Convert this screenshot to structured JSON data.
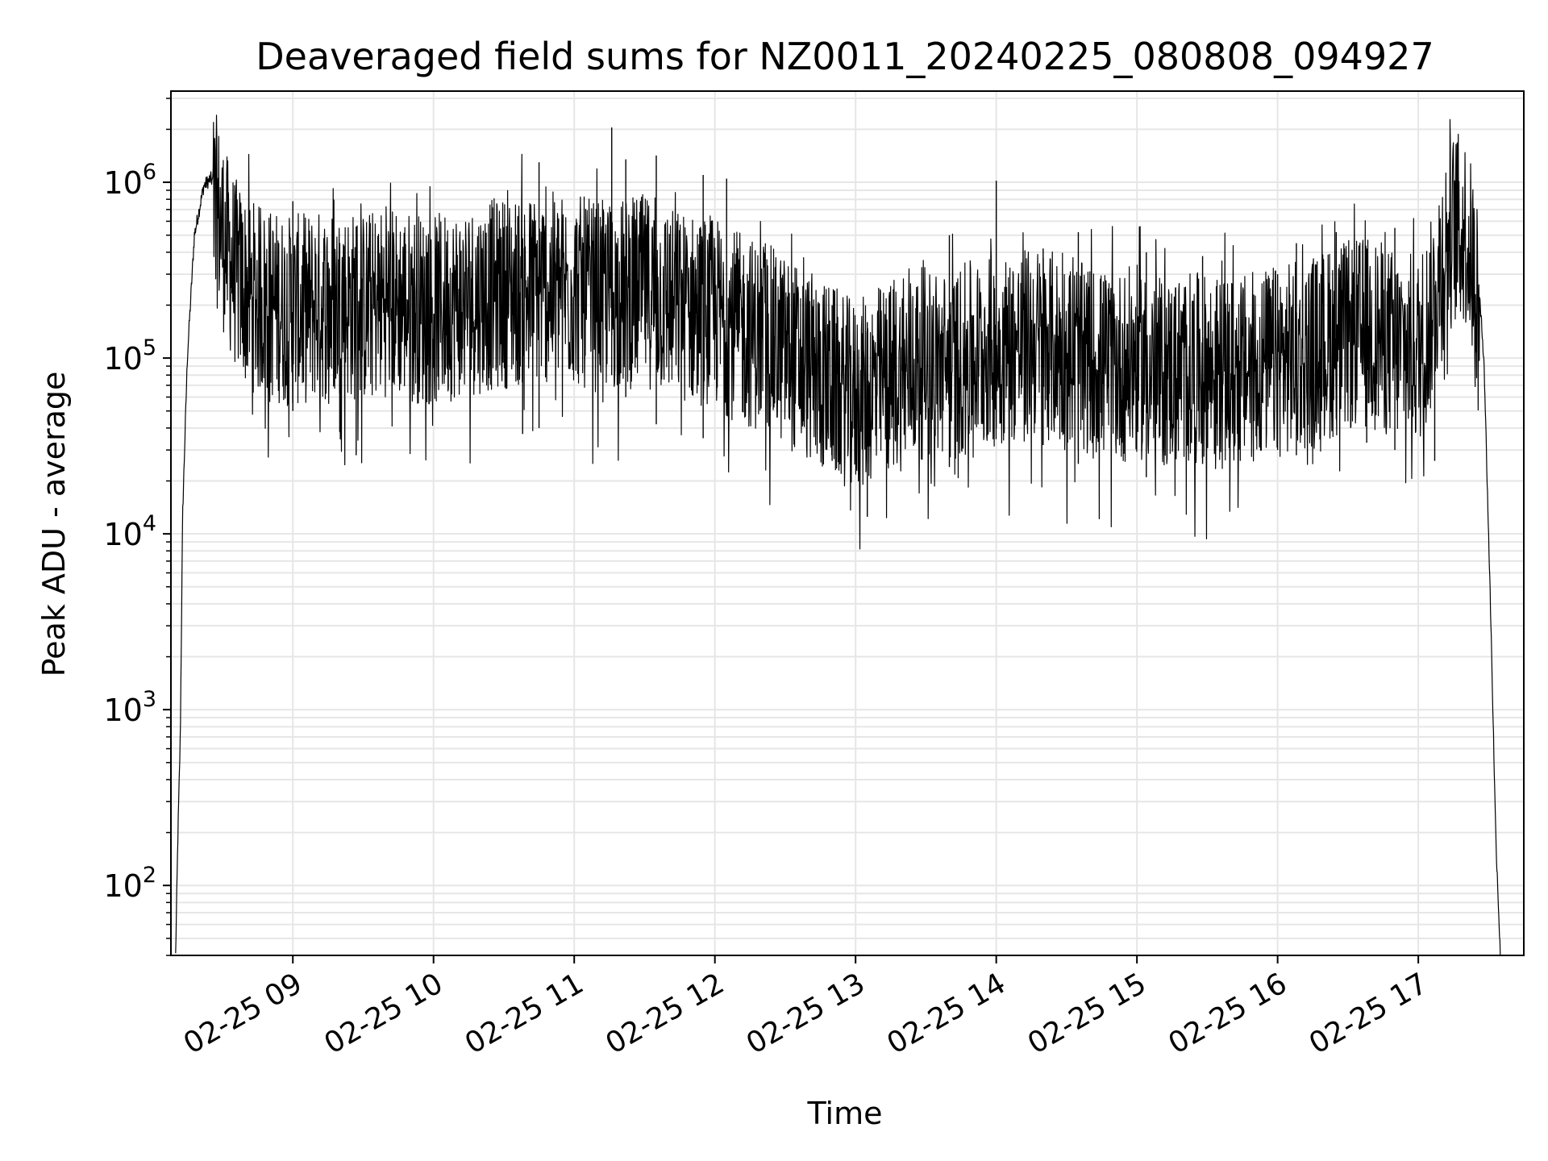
{
  "chart_data": {
    "type": "line",
    "title": "Deaveraged field sums for NZ0011_20240225_080808_094927",
    "xlabel": "Time",
    "ylabel": "Peak ADU - average",
    "yscale": "log",
    "grid": true,
    "line_color": "#000000",
    "grid_color": "#e6e6e6",
    "xlim": [
      "2024-02-25 08:08",
      "2024-02-25 17:45"
    ],
    "ylim": [
      40,
      3300000
    ],
    "x_ticks": [
      {
        "value": "2024-02-25 09:00",
        "label": "02-25 09"
      },
      {
        "value": "2024-02-25 10:00",
        "label": "02-25 10"
      },
      {
        "value": "2024-02-25 11:00",
        "label": "02-25 11"
      },
      {
        "value": "2024-02-25 12:00",
        "label": "02-25 12"
      },
      {
        "value": "2024-02-25 13:00",
        "label": "02-25 13"
      },
      {
        "value": "2024-02-25 14:00",
        "label": "02-25 14"
      },
      {
        "value": "2024-02-25 15:00",
        "label": "02-25 15"
      },
      {
        "value": "2024-02-25 16:00",
        "label": "02-25 16"
      },
      {
        "value": "2024-02-25 17:00",
        "label": "02-25 17"
      }
    ],
    "y_ticks": [
      {
        "value": 100,
        "base": "10",
        "exp": "2"
      },
      {
        "value": 1000,
        "base": "10",
        "exp": "3"
      },
      {
        "value": 10000,
        "base": "10",
        "exp": "4"
      },
      {
        "value": 100000,
        "base": "10",
        "exp": "5"
      },
      {
        "value": 1000000,
        "base": "10",
        "exp": "6"
      }
    ],
    "series": [
      {
        "x": [
          "2024-02-25 08:10",
          "2024-02-25 08:11",
          "2024-02-25 08:12",
          "2024-02-25 08:13",
          "2024-02-25 08:15",
          "2024-02-25 08:18",
          "2024-02-25 08:22",
          "2024-02-25 08:25",
          "2024-02-25 08:28",
          "2024-02-25 08:32",
          "2024-02-25 08:36",
          "2024-02-25 08:40",
          "2024-02-25 08:45",
          "2024-02-25 08:50",
          "2024-02-25 08:55",
          "2024-02-25 09:00",
          "2024-02-25 09:10",
          "2024-02-25 09:20",
          "2024-02-25 09:30",
          "2024-02-25 09:40",
          "2024-02-25 09:50",
          "2024-02-25 10:00",
          "2024-02-25 10:10",
          "2024-02-25 10:20",
          "2024-02-25 10:30",
          "2024-02-25 10:40",
          "2024-02-25 10:50",
          "2024-02-25 11:00",
          "2024-02-25 11:10",
          "2024-02-25 11:20",
          "2024-02-25 11:30",
          "2024-02-25 11:40",
          "2024-02-25 11:50",
          "2024-02-25 12:00",
          "2024-02-25 12:10",
          "2024-02-25 12:20",
          "2024-02-25 12:30",
          "2024-02-25 12:40",
          "2024-02-25 12:50",
          "2024-02-25 13:00",
          "2024-02-25 13:10",
          "2024-02-25 13:20",
          "2024-02-25 13:30",
          "2024-02-25 13:40",
          "2024-02-25 13:50",
          "2024-02-25 14:00",
          "2024-02-25 14:10",
          "2024-02-25 14:20",
          "2024-02-25 14:30",
          "2024-02-25 14:40",
          "2024-02-25 14:50",
          "2024-02-25 15:00",
          "2024-02-25 15:10",
          "2024-02-25 15:20",
          "2024-02-25 15:30",
          "2024-02-25 15:40",
          "2024-02-25 15:50",
          "2024-02-25 16:00",
          "2024-02-25 16:10",
          "2024-02-25 16:20",
          "2024-02-25 16:30",
          "2024-02-25 16:40",
          "2024-02-25 16:50",
          "2024-02-25 17:00",
          "2024-02-25 17:05",
          "2024-02-25 17:10",
          "2024-02-25 17:15",
          "2024-02-25 17:20",
          "2024-02-25 17:25",
          "2024-02-25 17:28",
          "2024-02-25 17:31",
          "2024-02-25 17:33",
          "2024-02-25 17:35"
        ],
        "y": [
          40,
          200,
          700,
          13000,
          100000,
          500000,
          950000,
          1050000,
          900000,
          550000,
          400000,
          330000,
          290000,
          280000,
          260000,
          250000,
          270000,
          280000,
          260000,
          290000,
          270000,
          250000,
          280000,
          300000,
          320000,
          330000,
          340000,
          330000,
          300000,
          310000,
          330000,
          280000,
          260000,
          250000,
          200000,
          180000,
          150000,
          120000,
          100000,
          80000,
          100000,
          110000,
          130000,
          120000,
          140000,
          150000,
          160000,
          170000,
          140000,
          130000,
          120000,
          130000,
          110000,
          120000,
          115000,
          110000,
          120000,
          130000,
          140000,
          160000,
          180000,
          190000,
          160000,
          150000,
          220000,
          500000,
          750000,
          720000,
          350000,
          100000,
          3000,
          200,
          40
        ],
        "spikes": [
          {
            "x": "2024-02-25 09:00",
            "high": 780000,
            "low": 50000
          },
          {
            "x": "2024-02-25 09:20",
            "high": 450000,
            "low": 38000
          },
          {
            "x": "2024-02-25 09:27",
            "high": 560000,
            "low": 28000
          },
          {
            "x": "2024-02-25 10:38",
            "high": 480000,
            "low": 37000
          },
          {
            "x": "2024-02-25 10:45",
            "high": 1300000,
            "low": 40000
          },
          {
            "x": "2024-02-25 11:16",
            "high": 2050000,
            "low": 80000
          },
          {
            "x": "2024-02-25 11:22",
            "high": 1350000,
            "low": 60000
          },
          {
            "x": "2024-02-25 11:35",
            "high": 1420000,
            "low": 42000
          },
          {
            "x": "2024-02-25 11:55",
            "high": 1100000,
            "low": 35000
          },
          {
            "x": "2024-02-25 12:05",
            "high": 1050000,
            "low": 55000
          },
          {
            "x": "2024-02-25 12:50",
            "high": 200000,
            "low": 26000
          },
          {
            "x": "2024-02-25 13:05",
            "high": 160000,
            "low": 12500
          },
          {
            "x": "2024-02-25 13:40",
            "high": 500000,
            "low": 24000
          },
          {
            "x": "2024-02-25 14:00",
            "high": 1020000,
            "low": 40000
          },
          {
            "x": "2024-02-25 14:20",
            "high": 420000,
            "low": 32000
          },
          {
            "x": "2024-02-25 14:35",
            "high": 520000,
            "low": 25000
          },
          {
            "x": "2024-02-25 15:04",
            "high": 400000,
            "low": 21000
          },
          {
            "x": "2024-02-25 15:28",
            "high": 380000,
            "low": 25000
          },
          {
            "x": "2024-02-25 16:00",
            "high": 300000,
            "low": 30000
          },
          {
            "x": "2024-02-25 16:08",
            "high": 450000,
            "low": 28000
          },
          {
            "x": "2024-02-25 16:25",
            "high": 520000,
            "low": 45000
          },
          {
            "x": "2024-02-25 16:38",
            "high": 420000,
            "low": 33000
          },
          {
            "x": "2024-02-25 16:50",
            "high": 550000,
            "low": 30000
          },
          {
            "x": "2024-02-25 17:07",
            "high": 260000,
            "low": 26000
          }
        ]
      }
    ]
  }
}
